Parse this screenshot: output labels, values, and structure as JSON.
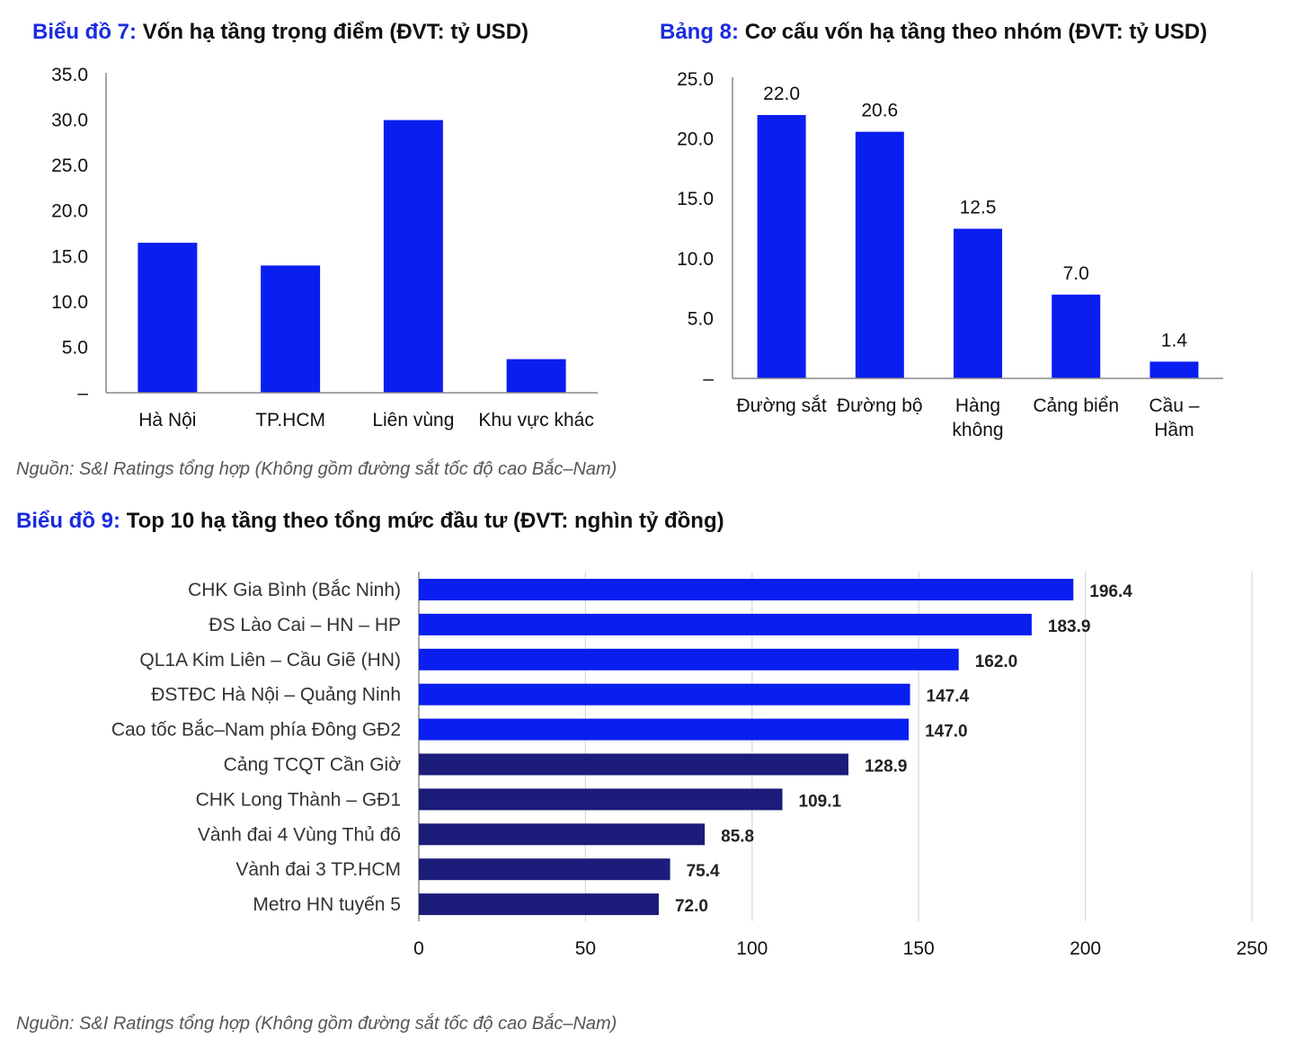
{
  "colors": {
    "accent": "#1a2be0",
    "bright_bar": "#0a1ef0",
    "dark_bar": "#1c1c7a",
    "axis": "#888888",
    "grid": "#d9d9d9"
  },
  "chart7": {
    "prefix": "Biểu đồ 7:",
    "title": "Vốn hạ tầng trọng điểm (ĐVT: tỷ USD)"
  },
  "chart8": {
    "prefix": "Bảng 8:",
    "title": "Cơ cấu vốn hạ tầng theo nhóm (ĐVT: tỷ USD)"
  },
  "source_top": "Nguồn: S&I Ratings tổng hợp (Không gồm đường sắt tốc độ cao Bắc–Nam)",
  "chart9": {
    "prefix": "Biểu đồ 9:",
    "title": "Top 10 hạ tầng theo tổng mức đầu tư (ĐVT: nghìn tỷ đồng)"
  },
  "source_bottom": "Nguồn: S&I Ratings tổng hợp (Không gồm đường sắt tốc độ cao Bắc–Nam)",
  "chart_data": [
    {
      "type": "bar",
      "title": "Vốn hạ tầng trọng điểm (ĐVT: tỷ USD)",
      "categories": [
        "Hà Nội",
        "TP.HCM",
        "Liên vùng",
        "Khu vực khác"
      ],
      "values": [
        16.5,
        14.0,
        30.0,
        3.7
      ],
      "yticks": [
        "–",
        "5.0",
        "10.0",
        "15.0",
        "20.0",
        "25.0",
        "30.0",
        "35.0"
      ],
      "ylim": [
        0,
        35
      ],
      "grid": false
    },
    {
      "type": "bar",
      "title": "Cơ cấu vốn hạ tầng theo nhóm (ĐVT: tỷ USD)",
      "categories": [
        [
          "Đường sắt"
        ],
        [
          "Đường bộ"
        ],
        [
          "Hàng",
          "không"
        ],
        [
          "Cảng biển"
        ],
        [
          "Cầu –",
          "Hầm"
        ]
      ],
      "values": [
        22.0,
        20.6,
        12.5,
        7.0,
        1.4
      ],
      "data_labels": [
        "22.0",
        "20.6",
        "12.5",
        "7.0",
        "1.4"
      ],
      "yticks": [
        "–",
        "5.0",
        "10.0",
        "15.0",
        "20.0",
        "25.0"
      ],
      "ylim": [
        0,
        25
      ],
      "grid": false
    },
    {
      "type": "bar",
      "orientation": "horizontal",
      "title": "Top 10 hạ tầng theo tổng mức đầu tư (ĐVT: nghìn tỷ đồng)",
      "categories": [
        "CHK Gia Bình (Bắc Ninh)",
        "ĐS Lào Cai – HN – HP",
        "QL1A Kim Liên – Cầu Giẽ (HN)",
        "ĐSTĐC Hà Nội – Quảng Ninh",
        "Cao tốc Bắc–Nam phía Đông GĐ2",
        "Cảng TCQT Cần Giờ",
        "CHK Long Thành – GĐ1",
        "Vành đai 4 Vùng Thủ đô",
        "Vành đai 3 TP.HCM",
        "Metro HN tuyến 5"
      ],
      "values": [
        196.4,
        183.9,
        162.0,
        147.4,
        147.0,
        128.9,
        109.1,
        85.8,
        75.4,
        72.0
      ],
      "data_labels": [
        "196.4",
        "183.9",
        "162.0",
        "147.4",
        "147.0",
        "128.9",
        "109.1",
        "85.8",
        "75.4",
        "72.0"
      ],
      "bar_colors": [
        "#0a1ef0",
        "#0a1ef0",
        "#0a1ef0",
        "#0a1ef0",
        "#0a1ef0",
        "#1c1c7a",
        "#1c1c7a",
        "#1c1c7a",
        "#1c1c7a",
        "#1c1c7a"
      ],
      "xticks": [
        "0",
        "50",
        "100",
        "150",
        "200",
        "250"
      ],
      "xlim": [
        0,
        250
      ],
      "grid": true
    }
  ]
}
